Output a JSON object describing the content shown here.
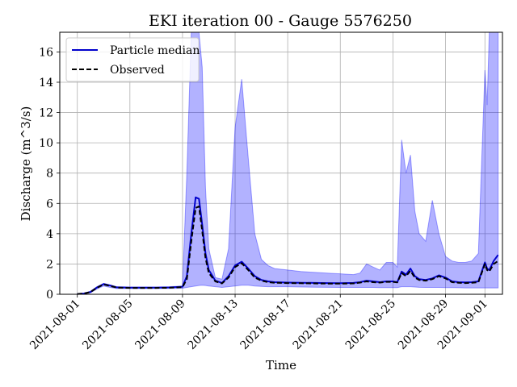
{
  "chart_data": {
    "type": "line",
    "title": "EKI iteration 00 - Gauge 5576250",
    "xlabel": "Time",
    "ylabel": "Discharge (m^3/s)",
    "xlim": [
      "2021-07-30T16:00",
      "2021-09-02T08:00"
    ],
    "ylim": [
      0,
      17.3
    ],
    "grid": true,
    "legend_position": "upper-left",
    "x_ticks": [
      "2021-08-01",
      "2021-08-05",
      "2021-08-09",
      "2021-08-13",
      "2021-08-17",
      "2021-08-21",
      "2021-08-25",
      "2021-08-29",
      "2021-09-01"
    ],
    "y_ticks": [
      0,
      2,
      4,
      6,
      8,
      10,
      12,
      14,
      16
    ],
    "x": [
      "2021-08-01T00:00",
      "2021-08-01T12:00",
      "2021-08-02T00:00",
      "2021-08-02T12:00",
      "2021-08-03T00:00",
      "2021-08-03T12:00",
      "2021-08-04T00:00",
      "2021-08-05T00:00",
      "2021-08-06T00:00",
      "2021-08-07T00:00",
      "2021-08-08T00:00",
      "2021-08-09T00:00",
      "2021-08-09T08:00",
      "2021-08-09T16:00",
      "2021-08-10T00:00",
      "2021-08-10T06:00",
      "2021-08-10T12:00",
      "2021-08-10T18:00",
      "2021-08-11T00:00",
      "2021-08-11T12:00",
      "2021-08-12T00:00",
      "2021-08-12T12:00",
      "2021-08-13T00:00",
      "2021-08-13T12:00",
      "2021-08-14T00:00",
      "2021-08-14T12:00",
      "2021-08-15T00:00",
      "2021-08-15T12:00",
      "2021-08-16T00:00",
      "2021-08-17T00:00",
      "2021-08-18T00:00",
      "2021-08-19T00:00",
      "2021-08-20T00:00",
      "2021-08-21T00:00",
      "2021-08-22T00:00",
      "2021-08-22T12:00",
      "2021-08-23T00:00",
      "2021-08-23T12:00",
      "2021-08-24T00:00",
      "2021-08-24T12:00",
      "2021-08-25T00:00",
      "2021-08-25T08:00",
      "2021-08-25T16:00",
      "2021-08-26T00:00",
      "2021-08-26T08:00",
      "2021-08-26T16:00",
      "2021-08-27T00:00",
      "2021-08-27T12:00",
      "2021-08-28T00:00",
      "2021-08-28T12:00",
      "2021-08-29T00:00",
      "2021-08-29T12:00",
      "2021-08-30T00:00",
      "2021-08-30T12:00",
      "2021-08-31T00:00",
      "2021-08-31T12:00",
      "2021-09-01T00:00",
      "2021-09-01T04:00",
      "2021-09-01T08:00",
      "2021-09-01T16:00",
      "2021-09-02T00:00"
    ],
    "series": [
      {
        "name": "Particle median",
        "color": "#0000cc",
        "style": "solid",
        "values": [
          0.02,
          0.05,
          0.15,
          0.45,
          0.68,
          0.58,
          0.46,
          0.44,
          0.44,
          0.44,
          0.45,
          0.5,
          1.2,
          4.0,
          6.4,
          6.3,
          4.6,
          2.7,
          1.6,
          0.9,
          0.75,
          1.2,
          1.9,
          2.15,
          1.7,
          1.2,
          0.95,
          0.85,
          0.8,
          0.77,
          0.76,
          0.75,
          0.74,
          0.73,
          0.75,
          0.8,
          0.9,
          0.85,
          0.8,
          0.85,
          0.85,
          0.8,
          1.5,
          1.3,
          1.7,
          1.2,
          1.0,
          0.95,
          1.05,
          1.25,
          1.1,
          0.85,
          0.8,
          0.78,
          0.8,
          0.85,
          2.1,
          1.7,
          1.6,
          2.2,
          2.6
        ]
      },
      {
        "name": "Observed",
        "color": "#000000",
        "style": "dashed",
        "values": [
          0.02,
          0.05,
          0.15,
          0.43,
          0.65,
          0.55,
          0.44,
          0.42,
          0.42,
          0.42,
          0.43,
          0.47,
          1.0,
          3.5,
          5.7,
          5.8,
          4.2,
          2.4,
          1.4,
          0.85,
          0.72,
          1.1,
          1.8,
          2.05,
          1.6,
          1.1,
          0.9,
          0.8,
          0.76,
          0.74,
          0.73,
          0.72,
          0.71,
          0.7,
          0.72,
          0.77,
          0.85,
          0.8,
          0.77,
          0.82,
          0.82,
          0.78,
          1.4,
          1.2,
          1.55,
          1.1,
          0.95,
          0.9,
          1.0,
          1.2,
          1.05,
          0.8,
          0.76,
          0.74,
          0.76,
          0.8,
          2.0,
          1.6,
          1.5,
          2.0,
          2.2
        ]
      }
    ],
    "band": {
      "color": "#0000ff",
      "upper": [
        0.05,
        0.08,
        0.2,
        0.5,
        0.72,
        0.62,
        0.5,
        0.48,
        0.48,
        0.48,
        0.5,
        0.55,
        8.0,
        18.0,
        18.0,
        18.0,
        15.0,
        7.0,
        3.0,
        1.1,
        1.0,
        3.0,
        11.0,
        14.2,
        9.0,
        4.0,
        2.3,
        1.9,
        1.7,
        1.6,
        1.5,
        1.45,
        1.4,
        1.35,
        1.3,
        1.4,
        2.0,
        1.8,
        1.6,
        2.1,
        2.1,
        1.8,
        10.2,
        8.0,
        9.2,
        5.5,
        4.0,
        3.5,
        6.2,
        4.0,
        2.5,
        2.2,
        2.1,
        2.1,
        2.2,
        2.7,
        14.8,
        12.5,
        18.0,
        18.0,
        18.0
      ],
      "lower": [
        0.0,
        0.02,
        0.1,
        0.35,
        0.55,
        0.45,
        0.38,
        0.38,
        0.38,
        0.38,
        0.39,
        0.4,
        0.45,
        0.5,
        0.55,
        0.58,
        0.6,
        0.58,
        0.55,
        0.5,
        0.45,
        0.5,
        0.55,
        0.6,
        0.6,
        0.55,
        0.52,
        0.5,
        0.5,
        0.5,
        0.48,
        0.47,
        0.46,
        0.45,
        0.45,
        0.45,
        0.45,
        0.45,
        0.44,
        0.44,
        0.44,
        0.44,
        0.5,
        0.5,
        0.5,
        0.48,
        0.46,
        0.45,
        0.45,
        0.45,
        0.44,
        0.44,
        0.43,
        0.42,
        0.42,
        0.42,
        0.42,
        0.42,
        0.42,
        0.42,
        0.42
      ]
    }
  }
}
